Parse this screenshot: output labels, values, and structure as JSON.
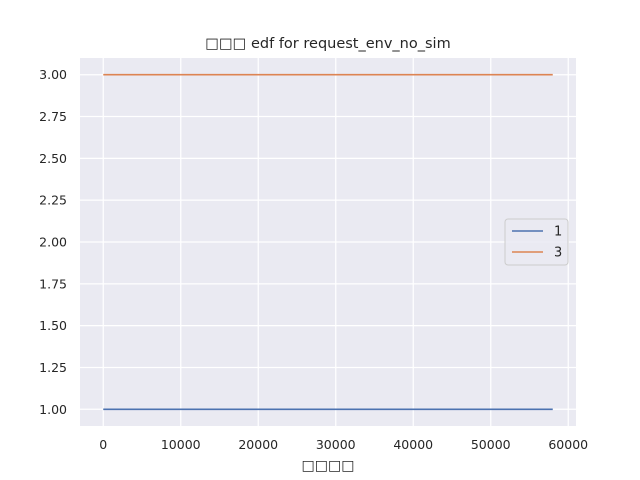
{
  "chart_data": {
    "type": "line",
    "title": "□□□ edf for request_env_no_sim",
    "xlabel": "□□□□",
    "ylabel": "",
    "xlim": [
      -3000,
      61000
    ],
    "ylim": [
      0.9,
      3.1
    ],
    "xticks": [
      0,
      10000,
      20000,
      30000,
      40000,
      50000,
      60000
    ],
    "xtick_labels": [
      "0",
      "10000",
      "20000",
      "30000",
      "40000",
      "50000",
      "60000"
    ],
    "yticks": [
      1.0,
      1.25,
      1.5,
      1.75,
      2.0,
      2.25,
      2.5,
      2.75,
      3.0
    ],
    "ytick_labels": [
      "1.00",
      "1.25",
      "1.50",
      "1.75",
      "2.00",
      "2.25",
      "2.50",
      "2.75",
      "3.00"
    ],
    "grid": true,
    "legend_position": "center-right",
    "series": [
      {
        "name": "1",
        "color": "#4c72b0",
        "x": [
          0,
          58000
        ],
        "y": [
          1,
          1
        ]
      },
      {
        "name": "3",
        "color": "#dd8452",
        "x": [
          0,
          58000
        ],
        "y": [
          3,
          3
        ]
      }
    ]
  }
}
